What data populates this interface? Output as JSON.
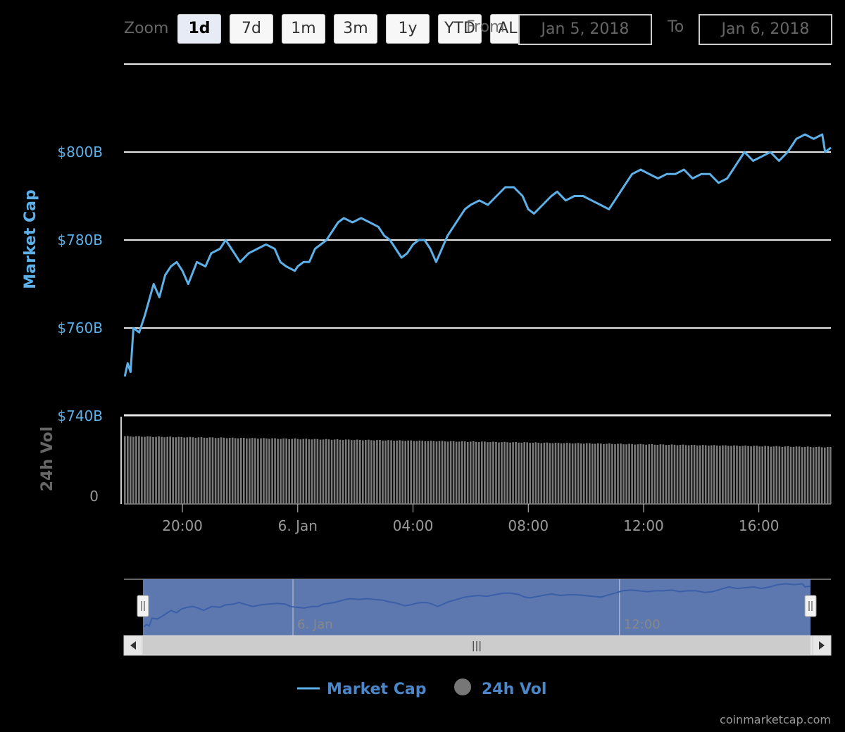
{
  "toolbar": {
    "zoom_label": "Zoom",
    "buttons": [
      "1d",
      "7d",
      "1m",
      "3m",
      "1y",
      "YTD",
      "ALL"
    ],
    "active": "1d",
    "from_label": "From",
    "from_value": "Jan 5, 2018",
    "to_label": "To",
    "to_value": "Jan 6, 2018"
  },
  "chart_data": {
    "type": "line",
    "title": "",
    "x_tick_labels": [
      "20:00",
      "6. Jan",
      "04:00",
      "08:00",
      "12:00",
      "16:00"
    ],
    "x_ticks_hours": [
      20,
      24,
      28,
      32,
      36,
      40
    ],
    "x_range_hours": [
      17.97,
      42.5
    ],
    "series": [
      {
        "name": "Market Cap",
        "color": "#5db0e8",
        "axis_label": "Market Cap",
        "y_tick_labels": [
          "$740B",
          "$760B",
          "$780B",
          "$800B"
        ],
        "y_ticks": [
          740,
          760,
          780,
          800
        ],
        "ylim": [
          740,
          820
        ],
        "unit": "B USD",
        "points": [
          [
            18.0,
            749
          ],
          [
            18.1,
            752
          ],
          [
            18.2,
            750
          ],
          [
            18.3,
            760
          ],
          [
            18.5,
            759
          ],
          [
            18.7,
            763
          ],
          [
            19.0,
            770
          ],
          [
            19.2,
            767
          ],
          [
            19.4,
            772
          ],
          [
            19.6,
            774
          ],
          [
            19.8,
            775
          ],
          [
            20.0,
            773
          ],
          [
            20.2,
            770
          ],
          [
            20.5,
            775
          ],
          [
            20.8,
            774
          ],
          [
            21.0,
            777
          ],
          [
            21.3,
            778
          ],
          [
            21.5,
            780
          ],
          [
            21.8,
            777
          ],
          [
            22.0,
            775
          ],
          [
            22.3,
            777
          ],
          [
            22.6,
            778
          ],
          [
            22.9,
            779
          ],
          [
            23.2,
            778
          ],
          [
            23.4,
            775
          ],
          [
            23.6,
            774
          ],
          [
            23.9,
            773
          ],
          [
            24.0,
            774
          ],
          [
            24.2,
            775
          ],
          [
            24.4,
            775
          ],
          [
            24.6,
            778
          ],
          [
            24.8,
            779
          ],
          [
            25.0,
            780
          ],
          [
            25.2,
            782
          ],
          [
            25.4,
            784
          ],
          [
            25.6,
            785
          ],
          [
            25.9,
            784
          ],
          [
            26.2,
            785
          ],
          [
            26.5,
            784
          ],
          [
            26.8,
            783
          ],
          [
            27.0,
            781
          ],
          [
            27.2,
            780
          ],
          [
            27.4,
            778
          ],
          [
            27.6,
            776
          ],
          [
            27.8,
            777
          ],
          [
            28.0,
            779
          ],
          [
            28.2,
            780
          ],
          [
            28.4,
            780
          ],
          [
            28.6,
            778
          ],
          [
            28.8,
            775
          ],
          [
            29.0,
            778
          ],
          [
            29.2,
            781
          ],
          [
            29.4,
            783
          ],
          [
            29.6,
            785
          ],
          [
            29.8,
            787
          ],
          [
            30.0,
            788
          ],
          [
            30.3,
            789
          ],
          [
            30.6,
            788
          ],
          [
            30.9,
            790
          ],
          [
            31.2,
            792
          ],
          [
            31.5,
            792
          ],
          [
            31.8,
            790
          ],
          [
            32.0,
            787
          ],
          [
            32.2,
            786
          ],
          [
            32.5,
            788
          ],
          [
            32.8,
            790
          ],
          [
            33.0,
            791
          ],
          [
            33.3,
            789
          ],
          [
            33.6,
            790
          ],
          [
            33.9,
            790
          ],
          [
            34.2,
            789
          ],
          [
            34.5,
            788
          ],
          [
            34.8,
            787
          ],
          [
            35.0,
            789
          ],
          [
            35.3,
            792
          ],
          [
            35.6,
            795
          ],
          [
            35.9,
            796
          ],
          [
            36.2,
            795
          ],
          [
            36.5,
            794
          ],
          [
            36.8,
            795
          ],
          [
            37.1,
            795
          ],
          [
            37.4,
            796
          ],
          [
            37.7,
            794
          ],
          [
            38.0,
            795
          ],
          [
            38.3,
            795
          ],
          [
            38.6,
            793
          ],
          [
            38.9,
            794
          ],
          [
            39.2,
            797
          ],
          [
            39.5,
            800
          ],
          [
            39.8,
            798
          ],
          [
            40.1,
            799
          ],
          [
            40.4,
            800
          ],
          [
            40.7,
            798
          ],
          [
            41.0,
            800
          ],
          [
            41.3,
            803
          ],
          [
            41.6,
            804
          ],
          [
            41.9,
            803
          ],
          [
            42.2,
            804
          ],
          [
            42.3,
            800
          ],
          [
            42.5,
            801
          ]
        ]
      },
      {
        "name": "24h Vol",
        "color": "#7a7a7a",
        "axis_label": "24h Vol",
        "y_tick_labels": [
          "0"
        ],
        "y_ticks": [
          0
        ],
        "type": "column",
        "relative_heights_start_end": [
          0.74,
          0.62
        ]
      }
    ],
    "navigator_tick_labels": [
      "6. Jan",
      "12:00"
    ],
    "navigator_tick_hours": [
      24,
      36
    ],
    "legend": [
      "Market Cap",
      "24h Vol"
    ],
    "legend_position": "bottom-center",
    "grid": true
  },
  "credit": "coinmarketcap.com"
}
